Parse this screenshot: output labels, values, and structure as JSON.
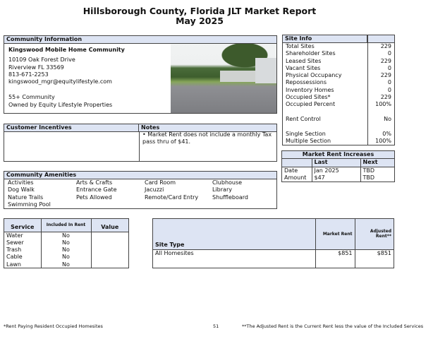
{
  "title": {
    "line1": "Hillsborough County, Florida JLT Market Report",
    "line2": "May 2025"
  },
  "community": {
    "header": "Community Information",
    "name": "Kingswood Mobile Home Community",
    "address1": "10109 Oak Forest Drive",
    "address2": "Riverview FL 33569",
    "phone": "813-671-2253",
    "email": "kingswood_mgr@equitylifestyle.com",
    "type": "55+ Community",
    "owner": "Owned by Equity Lifestyle Properties"
  },
  "incentives": {
    "header": "Customer Incentives",
    "notes_header": "Notes",
    "note": "• Market Rent does not include a monthly Tax pass thru of $41."
  },
  "amenities": {
    "header": "Community Amenities",
    "items": [
      "Activities",
      "Arts & Crafts",
      "Card Room",
      "Clubhouse",
      "Dog Walk",
      "Entrance Gate",
      "Jacuzzi",
      "Library",
      "Nature Trails",
      "Pets Allowed",
      "Remote/Card Entry",
      "Shuffleboard",
      "Swimming Pool"
    ]
  },
  "site_info": {
    "header": "Site Info",
    "rows": [
      [
        "Total Sites",
        "229"
      ],
      [
        "Shareholder Sites",
        "0"
      ],
      [
        "Leased Sites",
        "229"
      ],
      [
        "Vacant Sites",
        "0"
      ],
      [
        "Physical Occupancy",
        "229"
      ],
      [
        "Repossessions",
        "0"
      ],
      [
        "Inventory Homes",
        "0"
      ],
      [
        "Occupied Sites*",
        "229"
      ],
      [
        "Occupied Percent",
        "100%"
      ],
      [
        "",
        ""
      ],
      [
        "Rent Control",
        "No"
      ],
      [
        "",
        ""
      ],
      [
        "Single Section",
        "0%"
      ],
      [
        "Multiple Section",
        "100%"
      ]
    ]
  },
  "rent_increases": {
    "header": "Market Rent Increases",
    "col_last": "Last",
    "col_next": "Next",
    "rows": [
      [
        "Date",
        "Jan 2025",
        "TBD"
      ],
      [
        "Amount",
        "$47",
        "TBD"
      ]
    ]
  },
  "services": {
    "col_service": "Service",
    "col_included": "Included In Rent",
    "col_value": "Value",
    "rows": [
      [
        "Water",
        "No",
        ""
      ],
      [
        "Sewer",
        "No",
        ""
      ],
      [
        "Trash",
        "No",
        ""
      ],
      [
        "Cable",
        "No",
        ""
      ],
      [
        "Lawn",
        "No",
        ""
      ]
    ]
  },
  "site_types": {
    "col_type": "Site Type",
    "col_market": "Market Rent",
    "col_adjusted": "Adjusted Rent**",
    "rows": [
      [
        "All Homesites",
        "$851",
        "$851"
      ]
    ]
  },
  "footer": {
    "left": "*Rent Paying Resident Occupied Homesites",
    "page": "51",
    "right": "**The Adjusted Rent is the Current Rent less the value of the Included Services"
  }
}
